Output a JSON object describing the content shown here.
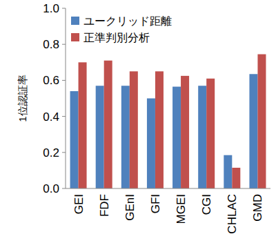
{
  "chart_data": {
    "type": "bar",
    "y_label": "1位認証率",
    "categories": [
      "GEI",
      "FDF",
      "GEnI",
      "GFI",
      "MGEI",
      "CGI",
      "CHLAC",
      "GMD"
    ],
    "series": [
      {
        "name": "ユークリッド距離",
        "color": "#4f81bd",
        "values": [
          0.54,
          0.57,
          0.57,
          0.5,
          0.565,
          0.57,
          0.185,
          0.635
        ]
      },
      {
        "name": "正準判別分析",
        "color": "#c0504d",
        "values": [
          0.7,
          0.71,
          0.65,
          0.65,
          0.625,
          0.61,
          0.115,
          0.745
        ]
      }
    ],
    "ylim": [
      0,
      1
    ],
    "yticks": [
      {
        "value": 0,
        "label": "0.0"
      },
      {
        "value": 0.2,
        "label": "0.2"
      },
      {
        "value": 0.4,
        "label": "0.4"
      },
      {
        "value": 0.6,
        "label": "0.6"
      },
      {
        "value": 0.8,
        "label": "0.8"
      },
      {
        "value": 1,
        "label": "1.0"
      }
    ],
    "grid": false,
    "legend": "upper left"
  }
}
